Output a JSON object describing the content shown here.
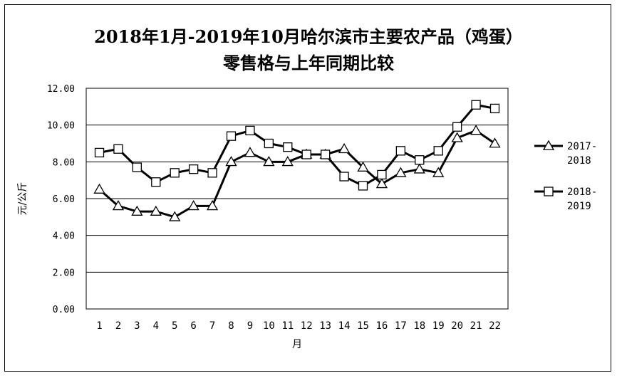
{
  "chart_data": {
    "type": "line",
    "title_lines": [
      "2018年1月-2019年10月哈尔滨市主要农产品（鸡蛋）",
      "零售格与上年同期比较"
    ],
    "xlabel": "月",
    "ylabel": "元/公斤",
    "ylim": [
      0,
      12
    ],
    "y_ticks": [
      "0.00",
      "2.00",
      "4.00",
      "6.00",
      "8.00",
      "10.00",
      "12.00"
    ],
    "categories": [
      "1",
      "2",
      "3",
      "4",
      "5",
      "6",
      "7",
      "8",
      "9",
      "10",
      "11",
      "12",
      "13",
      "14",
      "15",
      "16",
      "17",
      "18",
      "19",
      "20",
      "21",
      "22"
    ],
    "grid": true,
    "legend_position": "right",
    "series": [
      {
        "name": "2017-2018",
        "legend_lines": [
          "2017-",
          "2018"
        ],
        "marker": "triangle",
        "color": "#000000",
        "values": [
          6.5,
          5.6,
          5.3,
          5.3,
          5.0,
          5.6,
          5.6,
          8.0,
          8.5,
          8.0,
          8.0,
          8.4,
          8.4,
          8.7,
          7.7,
          6.8,
          7.4,
          7.6,
          7.4,
          9.3,
          9.7,
          9.0
        ]
      },
      {
        "name": "2018-2019",
        "legend_lines": [
          "2018-",
          "2019"
        ],
        "marker": "square",
        "color": "#000000",
        "values": [
          8.5,
          8.7,
          7.7,
          6.9,
          7.4,
          7.6,
          7.4,
          9.4,
          9.7,
          9.0,
          8.8,
          8.4,
          8.4,
          7.2,
          6.7,
          7.3,
          8.6,
          8.1,
          8.6,
          9.9,
          11.1,
          10.9
        ]
      }
    ]
  }
}
